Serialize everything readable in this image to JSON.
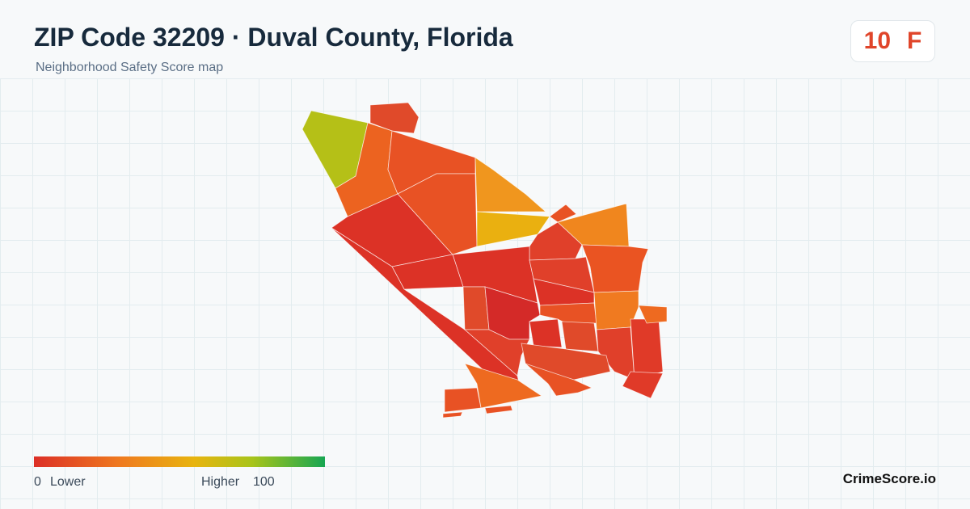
{
  "header": {
    "title": "ZIP Code 32209 · Duval County, Florida",
    "subtitle": "Neighborhood Safety Score map"
  },
  "score": {
    "value": "10",
    "grade": "F"
  },
  "legend": {
    "min": "0",
    "min_label": "Lower",
    "max_label": "Higher",
    "max": "100"
  },
  "brand": "CrimeScore.io"
}
